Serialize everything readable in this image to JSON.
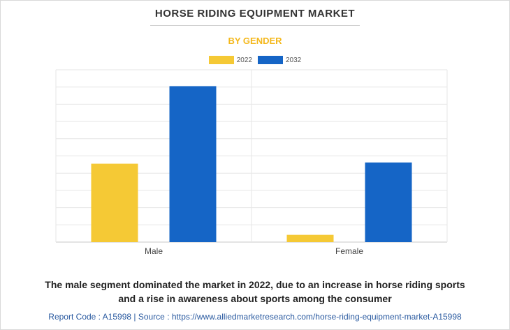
{
  "chart_data": {
    "type": "bar",
    "title": "HORSE RIDING EQUIPMENT MARKET",
    "subtitle": "BY GENDER",
    "categories": [
      "Male",
      "Female"
    ],
    "series": [
      {
        "name": "2022",
        "values": [
          4.55,
          0.42
        ],
        "color": "#f5c935"
      },
      {
        "name": "2032",
        "values": [
          9.05,
          4.62
        ],
        "color": "#1565c6"
      }
    ],
    "xlabel": "",
    "ylabel": "",
    "ylim": [
      0,
      10
    ],
    "grid": true,
    "legend_position": "top-center"
  },
  "caption": {
    "line1": "The male segment dominated the market in 2022, due to an increase in horse riding sports",
    "line2": "and a rise in awareness about sports among the consumer"
  },
  "footer": {
    "text": "Report Code : A15998  |  Source : https://www.alliedmarketresearch.com/horse-riding-equipment-market-A15998"
  }
}
